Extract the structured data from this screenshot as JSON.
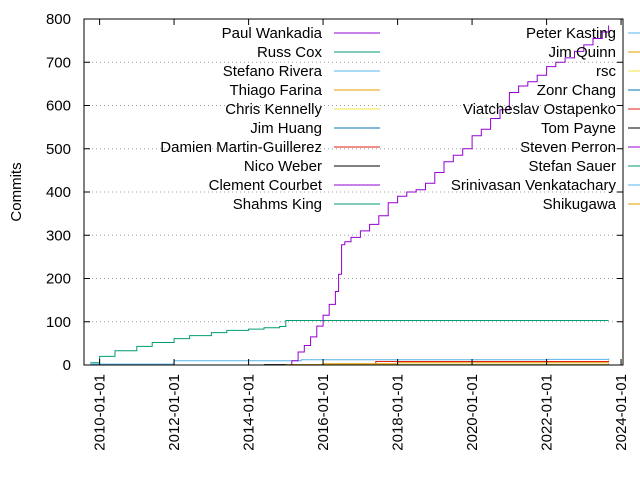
{
  "chart_data": {
    "type": "line",
    "ylabel": "Commits",
    "xlabel": "",
    "title": "",
    "grid": "horizontal-dotted",
    "legend_placement": "top, two columns",
    "xlim": [
      "2009-08-01",
      "2024-01-20"
    ],
    "ylim": [
      0,
      800
    ],
    "yticks": [
      0,
      100,
      200,
      300,
      400,
      500,
      600,
      700,
      800
    ],
    "xticks": [
      "2010-01-01",
      "2012-01-01",
      "2014-01-01",
      "2016-01-01",
      "2018-01-01",
      "2020-01-01",
      "2022-01-01",
      "2024-01-01"
    ],
    "series": [
      {
        "name": "Paul Wankadia",
        "color": "#9400d3",
        "x": [
          "2015-01-01",
          "2015-03-01",
          "2015-05-01",
          "2015-07-01",
          "2015-09-01",
          "2015-11-01",
          "2016-01-01",
          "2016-03-01",
          "2016-05-01",
          "2016-06-01",
          "2016-07-01",
          "2016-08-01",
          "2016-10-01",
          "2017-01-01",
          "2017-04-01",
          "2017-07-01",
          "2017-10-01",
          "2018-01-01",
          "2018-04-01",
          "2018-07-01",
          "2018-10-01",
          "2019-01-01",
          "2019-04-01",
          "2019-07-01",
          "2019-10-01",
          "2020-01-01",
          "2020-04-01",
          "2020-07-01",
          "2020-10-01",
          "2021-01-01",
          "2021-04-01",
          "2021-07-01",
          "2021-10-01",
          "2022-01-01",
          "2022-04-01",
          "2022-07-01",
          "2022-10-01",
          "2023-01-01",
          "2023-04-01",
          "2023-07-01",
          "2023-09-01"
        ],
        "values": [
          0,
          10,
          30,
          45,
          65,
          90,
          115,
          140,
          170,
          210,
          278,
          285,
          295,
          310,
          325,
          345,
          375,
          390,
          400,
          405,
          420,
          445,
          470,
          485,
          500,
          530,
          545,
          570,
          590,
          630,
          645,
          655,
          670,
          690,
          700,
          710,
          725,
          740,
          755,
          770,
          785
        ]
      },
      {
        "name": "Russ Cox",
        "color": "#009e73",
        "x": [
          "2009-10-01",
          "2010-01-01",
          "2010-06-01",
          "2011-01-01",
          "2011-06-01",
          "2012-01-01",
          "2012-06-01",
          "2013-01-01",
          "2013-06-01",
          "2014-01-01",
          "2014-06-01",
          "2014-11-01",
          "2015-01-01",
          "2023-09-01"
        ],
        "values": [
          5,
          20,
          33,
          43,
          52,
          61,
          68,
          75,
          80,
          83,
          86,
          89,
          103,
          103
        ]
      },
      {
        "name": "Stefano Rivera",
        "color": "#56b4e9",
        "x": [
          "2009-10-01",
          "2012-01-01",
          "2015-06-01",
          "2022-01-01",
          "2023-09-01"
        ],
        "values": [
          2,
          10,
          12,
          13,
          15
        ]
      },
      {
        "name": "Thiago Farina",
        "color": "#e69f00",
        "x": [
          "2015-01-01",
          "2016-01-01",
          "2018-01-01",
          "2023-09-01"
        ],
        "values": [
          1,
          3,
          5,
          6
        ]
      },
      {
        "name": "Chris Kennelly",
        "color": "#f0e442",
        "x": [
          "2015-01-01",
          "2023-09-01"
        ],
        "values": [
          1,
          2
        ]
      },
      {
        "name": "Jim Huang",
        "color": "#0072b2",
        "x": [
          "2015-06-01",
          "2023-09-01"
        ],
        "values": [
          1,
          3
        ]
      },
      {
        "name": "Damien Martin-Guillerez",
        "color": "#e51e10",
        "x": [
          "2016-01-01",
          "2017-06-01",
          "2023-09-01"
        ],
        "values": [
          2,
          8,
          10
        ]
      },
      {
        "name": "Nico Weber",
        "color": "#000000",
        "x": [
          "2014-06-01",
          "2023-09-01"
        ],
        "values": [
          1,
          2
        ]
      },
      {
        "name": "Clement Courbet",
        "color": "#9400d3",
        "x": [
          "2016-06-01",
          "2023-09-01"
        ],
        "values": [
          0,
          1
        ]
      },
      {
        "name": "Shahms King",
        "color": "#009e73",
        "x": [
          "2015-06-01",
          "2023-09-01"
        ],
        "values": [
          0,
          1
        ]
      },
      {
        "name": "Peter Kasting",
        "color": "#56b4e9",
        "x": [
          "2018-01-01",
          "2023-09-01"
        ],
        "values": [
          0,
          1
        ]
      },
      {
        "name": "Jim Quinn",
        "color": "#e69f00",
        "x": [
          "2016-01-01",
          "2023-09-01"
        ],
        "values": [
          0,
          1
        ]
      },
      {
        "name": "rsc",
        "color": "#f0e442",
        "x": [
          "2010-01-01",
          "2023-09-01"
        ],
        "values": [
          0,
          1
        ]
      },
      {
        "name": "Zonr Chang",
        "color": "#0072b2",
        "x": [
          "2016-06-01",
          "2023-09-01"
        ],
        "values": [
          0,
          1
        ]
      },
      {
        "name": "Viatcheslav Ostapenko",
        "color": "#e51e10",
        "x": [
          "2017-01-01",
          "2023-09-01"
        ],
        "values": [
          0,
          1
        ]
      },
      {
        "name": "Tom Payne",
        "color": "#000000",
        "x": [
          "2017-06-01",
          "2023-09-01"
        ],
        "values": [
          0,
          1
        ]
      },
      {
        "name": "Steven Perron",
        "color": "#9400d3",
        "x": [
          "2018-06-01",
          "2023-09-01"
        ],
        "values": [
          0,
          1
        ]
      },
      {
        "name": "Stefan Sauer",
        "color": "#009e73",
        "x": [
          "2019-01-01",
          "2023-09-01"
        ],
        "values": [
          0,
          1
        ]
      },
      {
        "name": "Srinivasan Venkatachary",
        "color": "#56b4e9",
        "x": [
          "2019-06-01",
          "2023-09-01"
        ],
        "values": [
          0,
          1
        ]
      },
      {
        "name": "Shikugawa",
        "color": "#e69f00",
        "x": [
          "2020-01-01",
          "2023-09-01"
        ],
        "values": [
          0,
          1
        ]
      }
    ]
  }
}
